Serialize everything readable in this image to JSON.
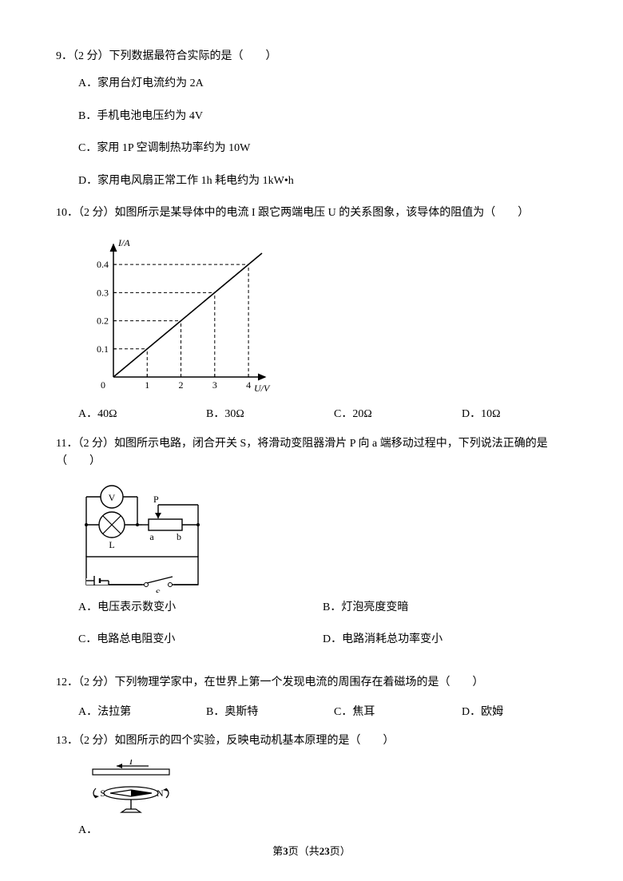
{
  "q9": {
    "stem": "9．（2 分）下列数据最符合实际的是（　　）",
    "opts": {
      "A": "A．家用台灯电流约为 2A",
      "B": "B．手机电池电压约为 4V",
      "C": "C．家用 1P 空调制热功率约为 10W",
      "D": "D．家用电风扇正常工作 1h 耗电约为 1kW•h"
    }
  },
  "q10": {
    "stem": "10．（2 分）如图所示是某导体中的电流 I 跟它两端电压 U 的关系图象，该导体的阻值为（　　）",
    "opts": {
      "A": "A．40Ω",
      "B": "B．30Ω",
      "C": "C．20Ω",
      "D": "D．10Ω"
    },
    "chart": {
      "type": "line",
      "ylabel": "I/A",
      "xlabel": "U/V",
      "x_ticks": [
        "0",
        "1",
        "2",
        "3",
        "4"
      ],
      "y_ticks": [
        "0.1",
        "0.2",
        "0.3",
        "0.4"
      ],
      "xlim": [
        0,
        4.4
      ],
      "ylim": [
        0,
        0.46
      ],
      "line_points": [
        [
          0,
          0
        ],
        [
          4,
          0.4
        ]
      ],
      "dash_points": [
        [
          1,
          0.1
        ],
        [
          2,
          0.2
        ],
        [
          3,
          0.3
        ],
        [
          4,
          0.4
        ]
      ],
      "axis_color": "#000000",
      "line_color": "#000000",
      "dash_color": "#000000",
      "font_size": 12
    }
  },
  "q11": {
    "stem": "11．（2 分）如图所示电路，闭合开关 S，将滑动变阻器滑片 P 向 a 端移动过程中，下列说法正确的是（　　）",
    "opts": {
      "A": "A．电压表示数变小",
      "B": "B．灯泡亮度变暗",
      "C": "C．电路总电阻变小",
      "D": "D．电路消耗总功率变小"
    },
    "circuit": {
      "type": "circuit",
      "labels": {
        "V": "V",
        "P": "P",
        "a": "a",
        "b": "b",
        "L": "L",
        "S": "S"
      },
      "stroke": "#000000",
      "font_size": 12
    }
  },
  "q12": {
    "stem": "12．（2 分）下列物理学家中，在世界上第一个发现电流的周围存在着磁场的是（　　）",
    "opts": {
      "A": "A．法拉第",
      "B": "B．奥斯特",
      "C": "C．焦耳",
      "D": "D．欧姆"
    }
  },
  "q13": {
    "stem": "13．（2 分）如图所示的四个实验，反映电动机基本原理的是（　　）",
    "optA_label": "A．",
    "diagram": {
      "type": "diagram",
      "labels": {
        "I": "I",
        "S": "S",
        "N": "N"
      },
      "stroke": "#000000",
      "font_size": 12
    }
  },
  "footer": {
    "prefix": "第",
    "page": "3",
    "mid": "页（共",
    "total": "23",
    "suffix": "页）"
  }
}
